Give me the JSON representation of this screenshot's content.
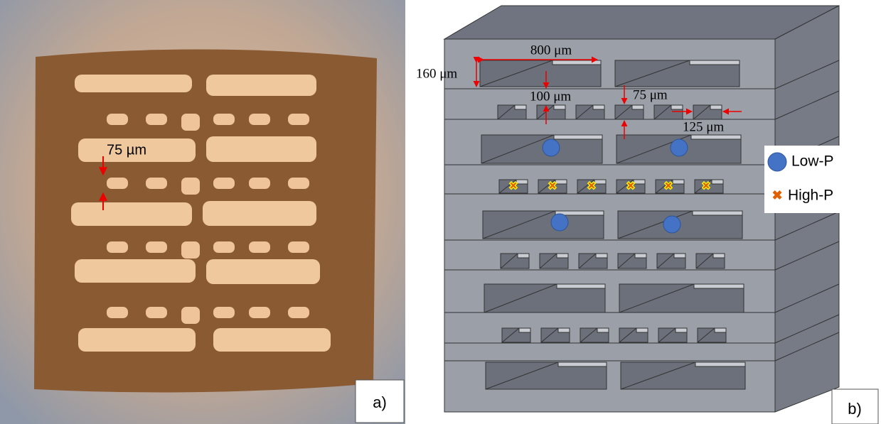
{
  "panel_a": {
    "annotation": "75 µm",
    "label": "a)"
  },
  "panel_b": {
    "dimensions": [
      "800 μm",
      "160 μm",
      "100 μm",
      "75 μm",
      "125 μm"
    ],
    "legend": [
      "Low-P",
      "High-P"
    ],
    "label": "b)"
  }
}
